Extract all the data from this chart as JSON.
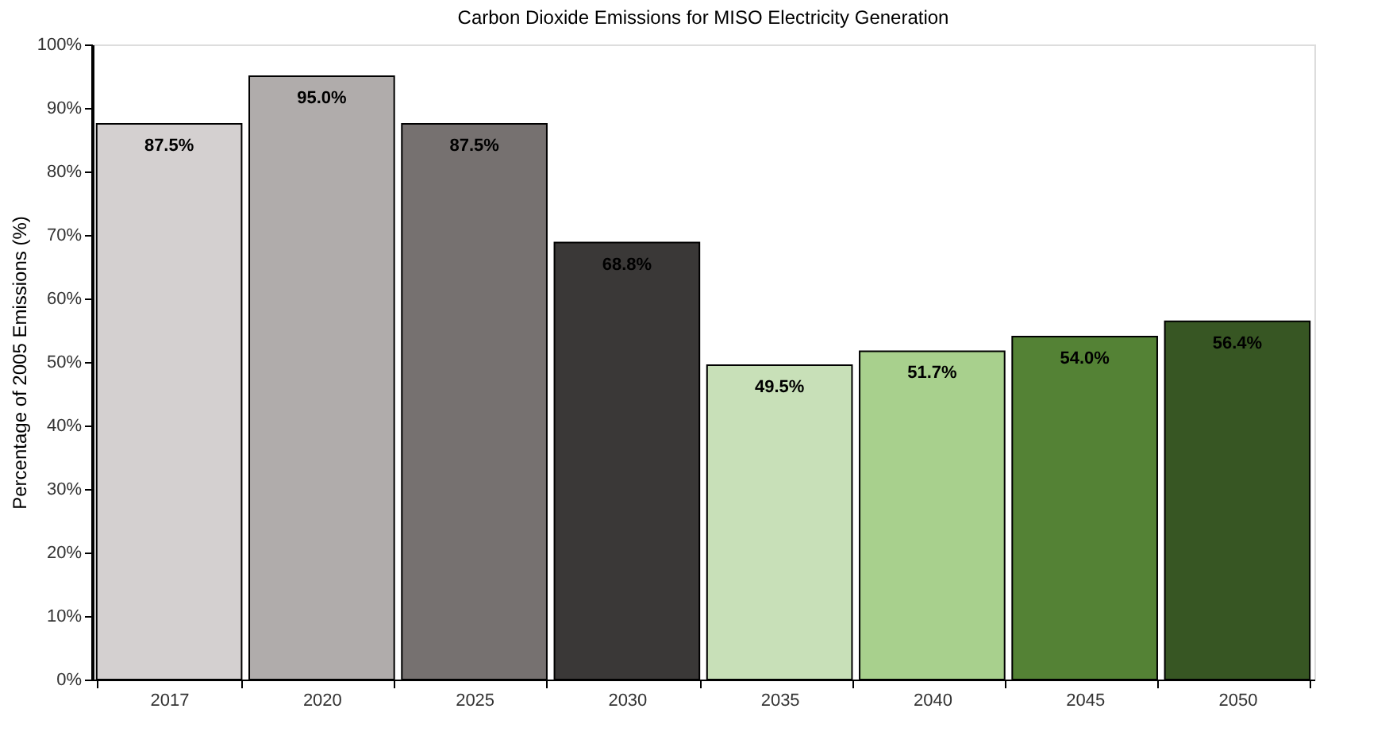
{
  "chart_data": {
    "type": "bar",
    "title": "Carbon Dioxide Emissions for MISO Electricity Generation",
    "ylabel": "Percentage of 2005 Emissions (%)",
    "categories": [
      "2017",
      "2020",
      "2025",
      "2030",
      "2035",
      "2040",
      "2045",
      "2050"
    ],
    "values": [
      87.5,
      95.0,
      87.5,
      68.8,
      49.5,
      51.7,
      54.0,
      56.4
    ],
    "value_labels": [
      "87.5%",
      "95.0%",
      "87.5%",
      "68.8%",
      "49.5%",
      "51.7%",
      "54.0%",
      "56.4%"
    ],
    "colors": [
      "#d4d0d0",
      "#b0acab",
      "#767170",
      "#3a3837",
      "#c8e0b8",
      "#a8d08d",
      "#548235",
      "#375623"
    ],
    "ylim": [
      0,
      100
    ],
    "yticks": [
      {
        "value": 0,
        "label": "0%"
      },
      {
        "value": 10,
        "label": "10%"
      },
      {
        "value": 20,
        "label": "20%"
      },
      {
        "value": 30,
        "label": "30%"
      },
      {
        "value": 40,
        "label": "40%"
      },
      {
        "value": 50,
        "label": "50%"
      },
      {
        "value": 60,
        "label": "60%"
      },
      {
        "value": 70,
        "label": "70%"
      },
      {
        "value": 80,
        "label": "80%"
      },
      {
        "value": 90,
        "label": "90%"
      },
      {
        "value": 100,
        "label": "100%"
      }
    ],
    "grid": false
  }
}
